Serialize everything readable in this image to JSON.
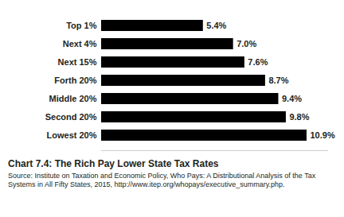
{
  "chart_data": {
    "type": "bar",
    "orientation": "horizontal",
    "title": "Chart 7.4: The Rich Pay Lower State Tax Rates",
    "source": "Source: Institute on Taxation and Economic Policy, Who Pays: A Distributional Analysis of the Tax Systems in All Fifty States, 2015, http://www.itep.org/whopays/executive_summary.php.",
    "categories": [
      "Top 1%",
      "Next 4%",
      "Next 15%",
      "Forth 20%",
      "Middle 20%",
      "Second 20%",
      "Lowest 20%"
    ],
    "values": [
      5.4,
      7.0,
      7.6,
      8.7,
      9.4,
      9.8,
      10.9
    ],
    "value_labels": [
      "5.4%",
      "7.0%",
      "7.6%",
      "8.7%",
      "9.4%",
      "9.8%",
      "10.9%"
    ],
    "color": "#000000",
    "xlim": [
      0,
      12
    ],
    "data_labels": true,
    "tick_labels": "y",
    "grid": false
  }
}
